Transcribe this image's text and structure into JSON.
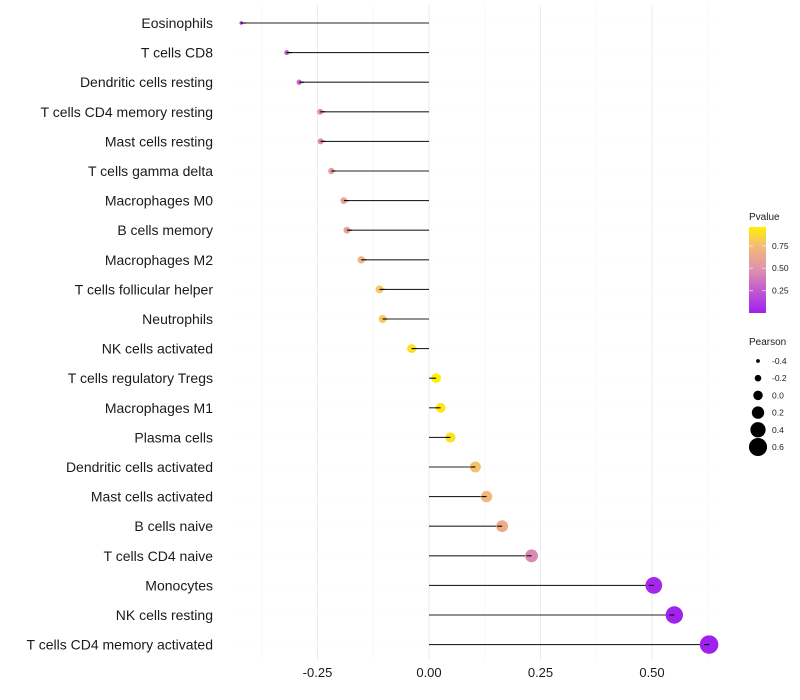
{
  "chart_data": {
    "type": "lollipop",
    "title": "",
    "xlabel": "",
    "ylabel": "",
    "xlim": [
      -0.445,
      0.655
    ],
    "x_ticks": [
      -0.25,
      0.0,
      0.25,
      0.5
    ],
    "x_tick_labels": [
      "-0.25",
      "0.00",
      "0.25",
      "0.50"
    ],
    "grid": true,
    "categories": [
      "Eosinophils",
      "T cells CD8",
      "Dendritic cells resting",
      "T cells CD4 memory resting",
      "Mast cells resting",
      "T cells gamma delta",
      "Macrophages M0",
      "B cells memory",
      "Macrophages M2",
      "T cells follicular helper",
      "Neutrophils",
      "NK cells activated",
      "T cells regulatory  Tregs ",
      "Macrophages M1",
      "Plasma cells",
      "Dendritic cells activated",
      "Mast cells activated",
      "B cells naive",
      "T cells CD4 naive",
      "Monocytes",
      "NK cells resting",
      "T cells CD4 memory activated"
    ],
    "series": [
      {
        "name": "Pearson",
        "values": [
          -0.421,
          -0.319,
          -0.291,
          -0.244,
          -0.243,
          -0.219,
          -0.191,
          -0.184,
          -0.152,
          -0.111,
          -0.104,
          -0.039,
          0.016,
          0.026,
          0.048,
          0.104,
          0.129,
          0.164,
          0.23,
          0.504,
          0.55,
          0.628
        ]
      },
      {
        "name": "Pvalue",
        "values": [
          0.05,
          0.25,
          0.3,
          0.45,
          0.45,
          0.55,
          0.6,
          0.6,
          0.7,
          0.8,
          0.8,
          0.9,
          0.96,
          0.93,
          0.9,
          0.77,
          0.72,
          0.65,
          0.45,
          0.03,
          0.01,
          0.002
        ]
      }
    ],
    "legends": {
      "color": {
        "title": "Pvalue",
        "ticks": [
          "0.75",
          "0.50",
          "0.25"
        ],
        "tick_values": [
          0.75,
          0.5,
          0.25
        ],
        "range": [
          0.0,
          0.96
        ],
        "low_color": "#A020F0",
        "high_color": "#FFF000"
      },
      "size": {
        "title": "Pearson",
        "entries": [
          "-0.4",
          "-0.2",
          "0.0",
          "0.2",
          "0.4",
          "0.6"
        ],
        "entry_values": [
          -0.4,
          -0.2,
          0.0,
          0.2,
          0.4,
          0.6
        ]
      },
      "placement": "right"
    },
    "colors": {
      "segment": "#000000",
      "grid": "#ebebeb"
    }
  }
}
